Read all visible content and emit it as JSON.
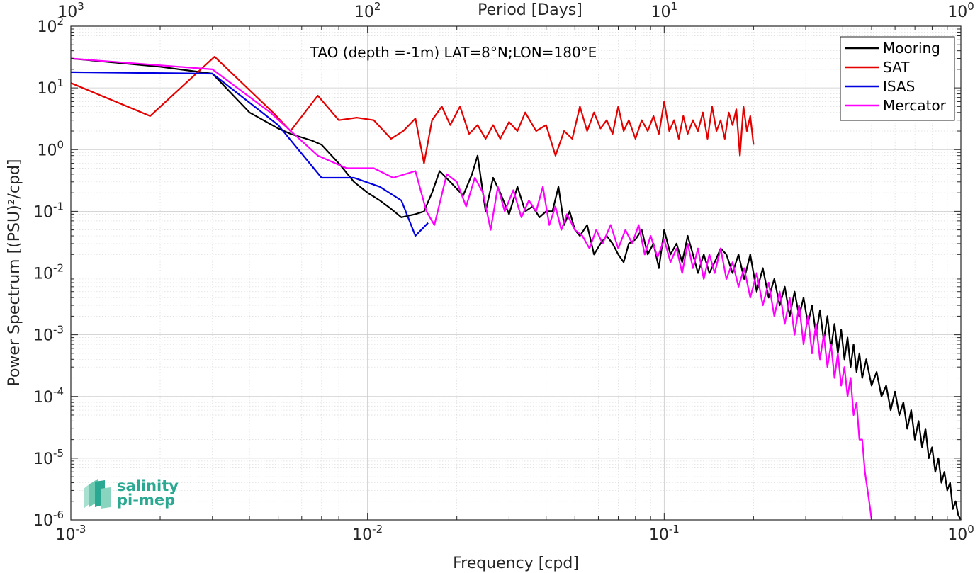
{
  "chart_data": {
    "type": "line",
    "title": "TAO (depth =-1m) LAT=8°N;LON=180°E",
    "xlabel": "Frequency [cpd]",
    "ylabel": "Power Spectrum [(PSU)²/cpd]",
    "x2label": "Period [Days]",
    "xscale": "log",
    "yscale": "log",
    "xlim": [
      0.001,
      1
    ],
    "ylim": [
      1e-06,
      100
    ],
    "grid": true,
    "legend_position": "top-right",
    "x_ticks": [
      0.001,
      0.01,
      0.1,
      1
    ],
    "x_tick_labels": [
      {
        "base": "10",
        "exp": "-3"
      },
      {
        "base": "10",
        "exp": "-2"
      },
      {
        "base": "10",
        "exp": "-1"
      },
      {
        "base": "10",
        "exp": "0"
      }
    ],
    "top_ticks": [
      1000,
      100,
      10,
      1
    ],
    "top_tick_labels": [
      {
        "base": "10",
        "exp": "3"
      },
      {
        "base": "10",
        "exp": "2"
      },
      {
        "base": "10",
        "exp": "1"
      },
      {
        "base": "10",
        "exp": "0"
      }
    ],
    "y_ticks": [
      1e-06,
      1e-05,
      0.0001,
      0.001,
      0.01,
      0.1,
      1,
      10,
      100
    ],
    "y_tick_labels": [
      {
        "base": "10",
        "exp": "-6"
      },
      {
        "base": "10",
        "exp": "-5"
      },
      {
        "base": "10",
        "exp": "-4"
      },
      {
        "base": "10",
        "exp": "-3"
      },
      {
        "base": "10",
        "exp": "-2"
      },
      {
        "base": "10",
        "exp": "-1"
      },
      {
        "base": "10",
        "exp": "0"
      },
      {
        "base": "10",
        "exp": "1"
      },
      {
        "base": "10",
        "exp": "2"
      }
    ],
    "series": [
      {
        "name": "Mooring",
        "color": "#000000",
        "x": [
          0.001,
          0.002,
          0.003,
          0.004,
          0.005,
          0.0055,
          0.0065,
          0.007,
          0.008,
          0.009,
          0.01,
          0.011,
          0.012,
          0.013,
          0.0145,
          0.0155,
          0.0165,
          0.0175,
          0.019,
          0.021,
          0.0225,
          0.0235,
          0.025,
          0.0265,
          0.028,
          0.03,
          0.032,
          0.034,
          0.036,
          0.038,
          0.04,
          0.042,
          0.044,
          0.046,
          0.048,
          0.05,
          0.052,
          0.055,
          0.058,
          0.061,
          0.064,
          0.067,
          0.07,
          0.073,
          0.076,
          0.08,
          0.084,
          0.088,
          0.092,
          0.096,
          0.1,
          0.105,
          0.11,
          0.115,
          0.12,
          0.125,
          0.13,
          0.136,
          0.142,
          0.148,
          0.155,
          0.162,
          0.17,
          0.178,
          0.186,
          0.195,
          0.205,
          0.215,
          0.225,
          0.235,
          0.245,
          0.255,
          0.265,
          0.275,
          0.285,
          0.295,
          0.305,
          0.315,
          0.325,
          0.335,
          0.345,
          0.355,
          0.365,
          0.375,
          0.385,
          0.395,
          0.405,
          0.415,
          0.425,
          0.435,
          0.445,
          0.455,
          0.465,
          0.48,
          0.5,
          0.52,
          0.54,
          0.56,
          0.58,
          0.6,
          0.62,
          0.64,
          0.66,
          0.68,
          0.7,
          0.72,
          0.74,
          0.76,
          0.78,
          0.8,
          0.82,
          0.84,
          0.86,
          0.88,
          0.9,
          0.92,
          0.94,
          0.96,
          0.98,
          1.0
        ],
        "y": [
          30,
          22,
          17,
          4,
          2.2,
          1.8,
          1.4,
          1.2,
          0.6,
          0.3,
          0.2,
          0.15,
          0.11,
          0.08,
          0.09,
          0.1,
          0.2,
          0.45,
          0.3,
          0.18,
          0.4,
          0.8,
          0.1,
          0.35,
          0.2,
          0.09,
          0.25,
          0.1,
          0.12,
          0.08,
          0.1,
          0.1,
          0.25,
          0.06,
          0.1,
          0.05,
          0.04,
          0.06,
          0.02,
          0.03,
          0.04,
          0.03,
          0.02,
          0.015,
          0.03,
          0.035,
          0.05,
          0.02,
          0.03,
          0.012,
          0.05,
          0.02,
          0.03,
          0.015,
          0.04,
          0.02,
          0.01,
          0.02,
          0.01,
          0.015,
          0.025,
          0.02,
          0.01,
          0.02,
          0.008,
          0.02,
          0.005,
          0.012,
          0.004,
          0.008,
          0.003,
          0.006,
          0.002,
          0.005,
          0.002,
          0.004,
          0.0015,
          0.003,
          0.001,
          0.0025,
          0.0008,
          0.002,
          0.0006,
          0.0015,
          0.0005,
          0.0012,
          0.0004,
          0.0009,
          0.0003,
          0.0007,
          0.00025,
          0.0005,
          0.0002,
          0.0004,
          0.00015,
          0.00025,
          0.0001,
          0.00015,
          6e-05,
          0.00012,
          5e-05,
          8e-05,
          3e-05,
          6e-05,
          2e-05,
          4e-05,
          1.5e-05,
          3e-05,
          1e-05,
          1.5e-05,
          6e-06,
          1e-05,
          4e-06,
          6e-06,
          3e-06,
          4e-06,
          1.5e-06,
          2e-06,
          1.2e-06,
          1e-06
        ]
      },
      {
        "name": "SAT",
        "color": "#e50000",
        "x": [
          0.001,
          0.00185,
          0.00305,
          0.0048,
          0.0055,
          0.0068,
          0.008,
          0.0092,
          0.0105,
          0.012,
          0.0132,
          0.0145,
          0.0155,
          0.0165,
          0.0178,
          0.019,
          0.0205,
          0.022,
          0.0235,
          0.025,
          0.0265,
          0.028,
          0.03,
          0.032,
          0.034,
          0.037,
          0.04,
          0.043,
          0.046,
          0.049,
          0.052,
          0.055,
          0.058,
          0.061,
          0.064,
          0.067,
          0.07,
          0.073,
          0.076,
          0.08,
          0.084,
          0.088,
          0.092,
          0.096,
          0.1,
          0.104,
          0.108,
          0.112,
          0.116,
          0.12,
          0.125,
          0.13,
          0.135,
          0.14,
          0.145,
          0.15,
          0.155,
          0.16,
          0.165,
          0.17,
          0.175,
          0.18,
          0.185,
          0.19,
          0.195,
          0.2
        ],
        "y": [
          12,
          3.5,
          32,
          4,
          2,
          7.5,
          3,
          3.3,
          3,
          1.5,
          2,
          3.2,
          0.6,
          3,
          5,
          2.5,
          5,
          1.8,
          2.5,
          1.5,
          2.5,
          1.5,
          2.8,
          2,
          4,
          2,
          2.5,
          0.8,
          2,
          1.5,
          5,
          2,
          4,
          2.2,
          3,
          1.8,
          5,
          2,
          3,
          1.5,
          3,
          2,
          3.5,
          1.8,
          6,
          2,
          3,
          1.5,
          3.5,
          1.8,
          3,
          2,
          4,
          1.5,
          5,
          2,
          3,
          1.5,
          4,
          2.5,
          4.5,
          0.8,
          5,
          2,
          3.5,
          1.2
        ]
      },
      {
        "name": "ISAS",
        "color": "#0000e0",
        "x": [
          0.001,
          0.003,
          0.005,
          0.007,
          0.009,
          0.011,
          0.013,
          0.0145,
          0.016
        ],
        "y": [
          18,
          17,
          2.5,
          0.35,
          0.35,
          0.25,
          0.15,
          0.04,
          0.065
        ]
      },
      {
        "name": "Mercator",
        "color": "#ff00ff",
        "x": [
          0.001,
          0.003,
          0.0047,
          0.0068,
          0.0085,
          0.0105,
          0.0122,
          0.0145,
          0.0158,
          0.0168,
          0.0185,
          0.02,
          0.0215,
          0.023,
          0.0245,
          0.026,
          0.0275,
          0.029,
          0.031,
          0.033,
          0.035,
          0.037,
          0.039,
          0.041,
          0.043,
          0.045,
          0.047,
          0.05,
          0.053,
          0.056,
          0.059,
          0.062,
          0.066,
          0.07,
          0.074,
          0.078,
          0.082,
          0.086,
          0.09,
          0.095,
          0.1,
          0.105,
          0.11,
          0.115,
          0.12,
          0.125,
          0.13,
          0.136,
          0.142,
          0.148,
          0.155,
          0.162,
          0.17,
          0.178,
          0.186,
          0.195,
          0.205,
          0.215,
          0.225,
          0.235,
          0.245,
          0.255,
          0.265,
          0.275,
          0.285,
          0.295,
          0.305,
          0.315,
          0.325,
          0.335,
          0.345,
          0.355,
          0.365,
          0.375,
          0.385,
          0.395,
          0.405,
          0.415,
          0.425,
          0.435,
          0.445,
          0.455,
          0.465,
          0.475,
          0.485,
          0.495,
          0.5
        ],
        "y": [
          30,
          20,
          4,
          0.8,
          0.5,
          0.5,
          0.35,
          0.45,
          0.1,
          0.06,
          0.4,
          0.3,
          0.12,
          0.35,
          0.2,
          0.05,
          0.25,
          0.1,
          0.22,
          0.08,
          0.15,
          0.1,
          0.25,
          0.06,
          0.12,
          0.05,
          0.09,
          0.05,
          0.04,
          0.025,
          0.05,
          0.03,
          0.06,
          0.025,
          0.05,
          0.03,
          0.06,
          0.02,
          0.04,
          0.018,
          0.035,
          0.015,
          0.025,
          0.01,
          0.03,
          0.012,
          0.025,
          0.008,
          0.02,
          0.01,
          0.025,
          0.008,
          0.015,
          0.006,
          0.012,
          0.004,
          0.01,
          0.003,
          0.007,
          0.002,
          0.005,
          0.0015,
          0.004,
          0.001,
          0.003,
          0.0007,
          0.002,
          0.0005,
          0.0015,
          0.0004,
          0.001,
          0.0003,
          0.0007,
          0.0002,
          0.0005,
          0.00015,
          0.0003,
          0.0001,
          0.0002,
          5e-05,
          8e-05,
          2e-05,
          2e-05,
          6e-06,
          3e-06,
          1.5e-06,
          1e-06
        ]
      }
    ]
  },
  "logo": {
    "line1": "salinity",
    "line2": "pi-mep",
    "color": "#2aa892"
  }
}
